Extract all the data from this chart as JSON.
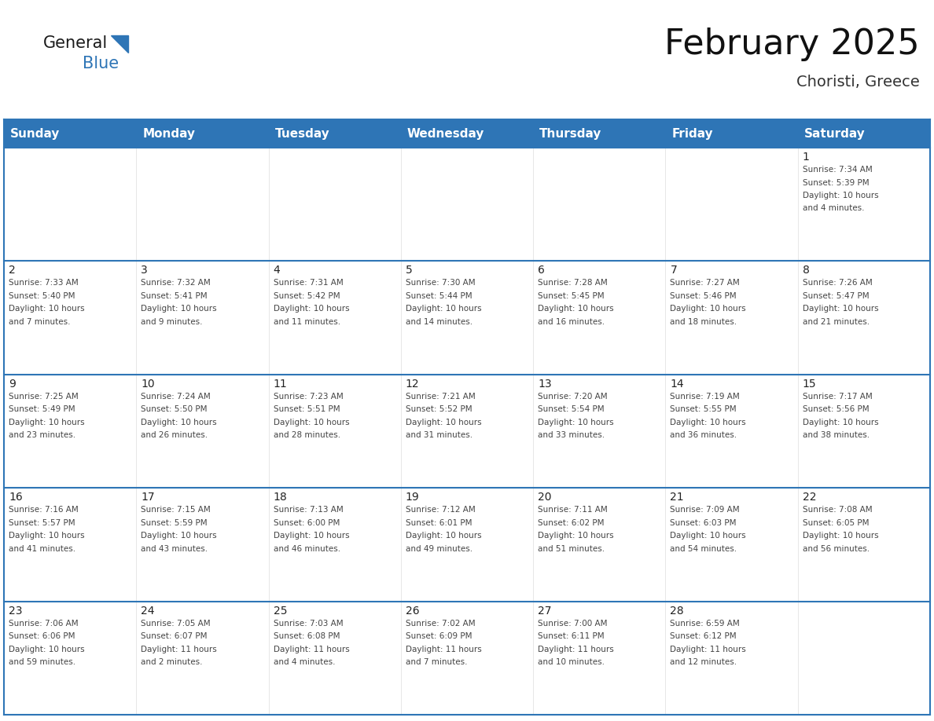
{
  "title": "February 2025",
  "subtitle": "Choristi, Greece",
  "header_bg": "#2E75B6",
  "header_text_color": "#FFFFFF",
  "border_color": "#2E75B6",
  "cell_border_color": "#AAAAAA",
  "day_names": [
    "Sunday",
    "Monday",
    "Tuesday",
    "Wednesday",
    "Thursday",
    "Friday",
    "Saturday"
  ],
  "days": [
    {
      "day": 1,
      "col": 6,
      "row": 0,
      "sunrise": "7:34 AM",
      "sunset": "5:39 PM",
      "daylight": "10 hours and 4 minutes."
    },
    {
      "day": 2,
      "col": 0,
      "row": 1,
      "sunrise": "7:33 AM",
      "sunset": "5:40 PM",
      "daylight": "10 hours and 7 minutes."
    },
    {
      "day": 3,
      "col": 1,
      "row": 1,
      "sunrise": "7:32 AM",
      "sunset": "5:41 PM",
      "daylight": "10 hours and 9 minutes."
    },
    {
      "day": 4,
      "col": 2,
      "row": 1,
      "sunrise": "7:31 AM",
      "sunset": "5:42 PM",
      "daylight": "10 hours and 11 minutes."
    },
    {
      "day": 5,
      "col": 3,
      "row": 1,
      "sunrise": "7:30 AM",
      "sunset": "5:44 PM",
      "daylight": "10 hours and 14 minutes."
    },
    {
      "day": 6,
      "col": 4,
      "row": 1,
      "sunrise": "7:28 AM",
      "sunset": "5:45 PM",
      "daylight": "10 hours and 16 minutes."
    },
    {
      "day": 7,
      "col": 5,
      "row": 1,
      "sunrise": "7:27 AM",
      "sunset": "5:46 PM",
      "daylight": "10 hours and 18 minutes."
    },
    {
      "day": 8,
      "col": 6,
      "row": 1,
      "sunrise": "7:26 AM",
      "sunset": "5:47 PM",
      "daylight": "10 hours and 21 minutes."
    },
    {
      "day": 9,
      "col": 0,
      "row": 2,
      "sunrise": "7:25 AM",
      "sunset": "5:49 PM",
      "daylight": "10 hours and 23 minutes."
    },
    {
      "day": 10,
      "col": 1,
      "row": 2,
      "sunrise": "7:24 AM",
      "sunset": "5:50 PM",
      "daylight": "10 hours and 26 minutes."
    },
    {
      "day": 11,
      "col": 2,
      "row": 2,
      "sunrise": "7:23 AM",
      "sunset": "5:51 PM",
      "daylight": "10 hours and 28 minutes."
    },
    {
      "day": 12,
      "col": 3,
      "row": 2,
      "sunrise": "7:21 AM",
      "sunset": "5:52 PM",
      "daylight": "10 hours and 31 minutes."
    },
    {
      "day": 13,
      "col": 4,
      "row": 2,
      "sunrise": "7:20 AM",
      "sunset": "5:54 PM",
      "daylight": "10 hours and 33 minutes."
    },
    {
      "day": 14,
      "col": 5,
      "row": 2,
      "sunrise": "7:19 AM",
      "sunset": "5:55 PM",
      "daylight": "10 hours and 36 minutes."
    },
    {
      "day": 15,
      "col": 6,
      "row": 2,
      "sunrise": "7:17 AM",
      "sunset": "5:56 PM",
      "daylight": "10 hours and 38 minutes."
    },
    {
      "day": 16,
      "col": 0,
      "row": 3,
      "sunrise": "7:16 AM",
      "sunset": "5:57 PM",
      "daylight": "10 hours and 41 minutes."
    },
    {
      "day": 17,
      "col": 1,
      "row": 3,
      "sunrise": "7:15 AM",
      "sunset": "5:59 PM",
      "daylight": "10 hours and 43 minutes."
    },
    {
      "day": 18,
      "col": 2,
      "row": 3,
      "sunrise": "7:13 AM",
      "sunset": "6:00 PM",
      "daylight": "10 hours and 46 minutes."
    },
    {
      "day": 19,
      "col": 3,
      "row": 3,
      "sunrise": "7:12 AM",
      "sunset": "6:01 PM",
      "daylight": "10 hours and 49 minutes."
    },
    {
      "day": 20,
      "col": 4,
      "row": 3,
      "sunrise": "7:11 AM",
      "sunset": "6:02 PM",
      "daylight": "10 hours and 51 minutes."
    },
    {
      "day": 21,
      "col": 5,
      "row": 3,
      "sunrise": "7:09 AM",
      "sunset": "6:03 PM",
      "daylight": "10 hours and 54 minutes."
    },
    {
      "day": 22,
      "col": 6,
      "row": 3,
      "sunrise": "7:08 AM",
      "sunset": "6:05 PM",
      "daylight": "10 hours and 56 minutes."
    },
    {
      "day": 23,
      "col": 0,
      "row": 4,
      "sunrise": "7:06 AM",
      "sunset": "6:06 PM",
      "daylight": "10 hours and 59 minutes."
    },
    {
      "day": 24,
      "col": 1,
      "row": 4,
      "sunrise": "7:05 AM",
      "sunset": "6:07 PM",
      "daylight": "11 hours and 2 minutes."
    },
    {
      "day": 25,
      "col": 2,
      "row": 4,
      "sunrise": "7:03 AM",
      "sunset": "6:08 PM",
      "daylight": "11 hours and 4 minutes."
    },
    {
      "day": 26,
      "col": 3,
      "row": 4,
      "sunrise": "7:02 AM",
      "sunset": "6:09 PM",
      "daylight": "11 hours and 7 minutes."
    },
    {
      "day": 27,
      "col": 4,
      "row": 4,
      "sunrise": "7:00 AM",
      "sunset": "6:11 PM",
      "daylight": "11 hours and 10 minutes."
    },
    {
      "day": 28,
      "col": 5,
      "row": 4,
      "sunrise": "6:59 AM",
      "sunset": "6:12 PM",
      "daylight": "11 hours and 12 minutes."
    }
  ],
  "num_rows": 5,
  "num_cols": 7,
  "logo_triangle_color": "#2E75B6",
  "title_fontsize": 32,
  "subtitle_fontsize": 14,
  "header_fontsize": 11,
  "day_num_fontsize": 10,
  "cell_text_fontsize": 7.5
}
